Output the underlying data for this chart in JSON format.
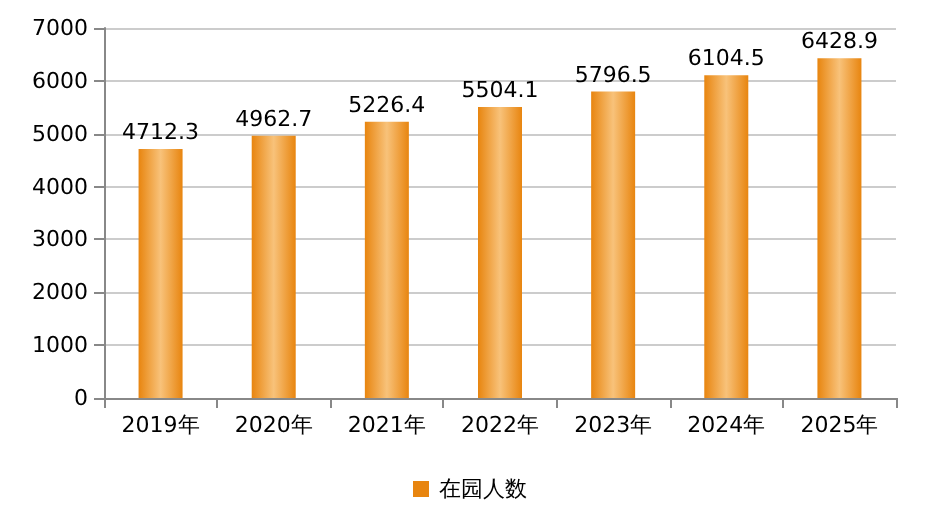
{
  "chart_data": {
    "type": "bar",
    "categories": [
      "2019年",
      "2020年",
      "2021年",
      "2022年",
      "2023年",
      "2024年",
      "2025年"
    ],
    "series": [
      {
        "name": "在园人数",
        "color": "#e8850f",
        "values": [
          4712.3,
          4962.7,
          5226.4,
          5504.1,
          5796.5,
          6104.5,
          6428.9
        ]
      }
    ],
    "ylim": [
      0,
      7000
    ],
    "yticks": [
      0,
      1000,
      2000,
      3000,
      4000,
      5000,
      6000,
      7000
    ],
    "grid": "y",
    "legend": "bottom",
    "data_labels": true
  }
}
